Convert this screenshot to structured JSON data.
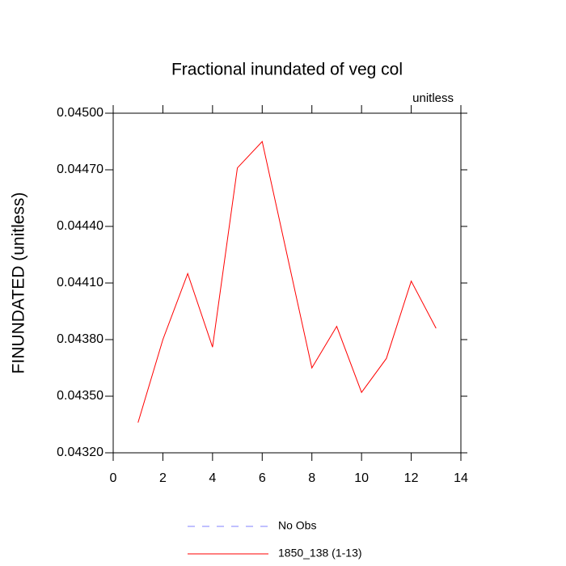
{
  "chart_data": {
    "type": "line",
    "title": "Fractional inundated of veg col",
    "subtitle": "unitless",
    "y_label": "FINUNDATED  (unitless)",
    "x": [
      1,
      2,
      3,
      4,
      5,
      6,
      7,
      8,
      9,
      10,
      11,
      12,
      13
    ],
    "series": [
      {
        "name": "1850_138 (1-13)",
        "color": "#ff0000",
        "values": [
          0.04336,
          0.0438,
          0.04415,
          0.04376,
          0.04471,
          0.04485,
          0.04425,
          0.04365,
          0.04387,
          0.04352,
          0.0437,
          0.04411,
          0.04386
        ]
      }
    ],
    "legend_entries": [
      {
        "name": "No Obs",
        "color": "#8080ff",
        "style": "dashed"
      }
    ],
    "xlim": [
      0,
      14
    ],
    "xticks": [
      0,
      2,
      4,
      6,
      8,
      10,
      12,
      14
    ],
    "ylim": [
      0.0432,
      0.045
    ],
    "yticks": [
      {
        "value": 0.0432,
        "label": "0.04320"
      },
      {
        "value": 0.0435,
        "label": "0.04350"
      },
      {
        "value": 0.0438,
        "label": "0.04380"
      },
      {
        "value": 0.0441,
        "label": "0.04410"
      },
      {
        "value": 0.0444,
        "label": "0.04440"
      },
      {
        "value": 0.0447,
        "label": "0.04470"
      },
      {
        "value": 0.045,
        "label": "0.04500"
      }
    ],
    "grid": false
  }
}
